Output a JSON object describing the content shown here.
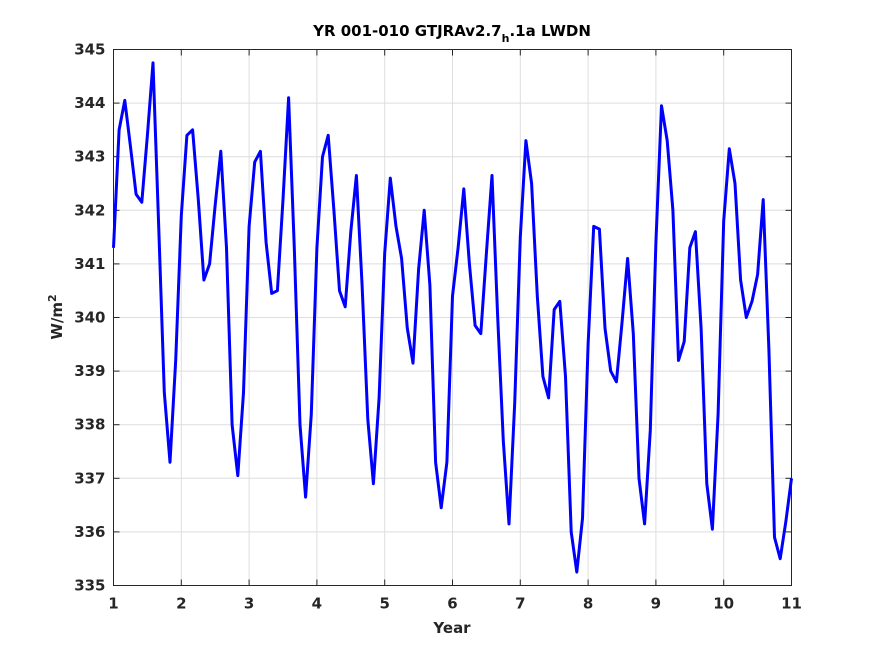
{
  "chart_data": {
    "type": "line",
    "title_main": "YR 001-010 GTJRAv2.7",
    "title_sub": "h",
    "title_tail": ".1a LWDN",
    "xlabel": "Year",
    "ylabel_main": "W/m",
    "ylabel_sup": "2",
    "xlim": [
      1,
      11
    ],
    "ylim": [
      335,
      345
    ],
    "xticks": [
      "1",
      "2",
      "3",
      "4",
      "5",
      "6",
      "7",
      "8",
      "9",
      "10",
      "11"
    ],
    "yticks": [
      "335",
      "336",
      "337",
      "338",
      "339",
      "340",
      "341",
      "342",
      "343",
      "344",
      "345"
    ],
    "grid": true,
    "series": [
      {
        "color": "#0000ff",
        "x": [
          1.0,
          1.083,
          1.167,
          1.25,
          1.333,
          1.417,
          1.5,
          1.583,
          1.667,
          1.75,
          1.833,
          1.917,
          2.0,
          2.083,
          2.167,
          2.25,
          2.333,
          2.417,
          2.5,
          2.583,
          2.667,
          2.75,
          2.833,
          2.917,
          3.0,
          3.083,
          3.167,
          3.25,
          3.333,
          3.417,
          3.5,
          3.583,
          3.667,
          3.75,
          3.833,
          3.917,
          4.0,
          4.083,
          4.167,
          4.25,
          4.333,
          4.417,
          4.5,
          4.583,
          4.667,
          4.75,
          4.833,
          4.917,
          5.0,
          5.083,
          5.167,
          5.25,
          5.333,
          5.417,
          5.5,
          5.583,
          5.667,
          5.75,
          5.833,
          5.917,
          6.0,
          6.083,
          6.167,
          6.25,
          6.333,
          6.417,
          6.5,
          6.583,
          6.667,
          6.75,
          6.833,
          6.917,
          7.0,
          7.083,
          7.167,
          7.25,
          7.333,
          7.417,
          7.5,
          7.583,
          7.667,
          7.75,
          7.833,
          7.917,
          8.0,
          8.083,
          8.167,
          8.25,
          8.333,
          8.417,
          8.5,
          8.583,
          8.667,
          8.75,
          8.833,
          8.917,
          9.0,
          9.083,
          9.167,
          9.25,
          9.333,
          9.417,
          9.5,
          9.583,
          9.667,
          9.75,
          9.833,
          9.917,
          10.0,
          10.083,
          10.167,
          10.25,
          10.333,
          10.417,
          10.5,
          10.583,
          10.667,
          10.75,
          10.833,
          10.917,
          11.0
        ],
        "y": [
          341.3,
          343.5,
          344.05,
          343.2,
          342.3,
          342.15,
          343.4,
          344.75,
          341.7,
          338.6,
          337.3,
          339.2,
          341.9,
          343.4,
          343.5,
          342.2,
          340.7,
          341.0,
          342.1,
          343.1,
          341.3,
          338.0,
          337.05,
          338.6,
          341.7,
          342.9,
          343.1,
          341.4,
          340.45,
          340.5,
          342.2,
          344.1,
          341.3,
          338.0,
          336.65,
          338.2,
          341.3,
          343.0,
          343.4,
          342.0,
          340.5,
          340.2,
          341.6,
          342.65,
          340.6,
          338.1,
          336.9,
          338.5,
          341.2,
          342.6,
          341.7,
          341.1,
          339.8,
          339.15,
          340.9,
          342.0,
          340.6,
          337.3,
          336.45,
          337.3,
          340.4,
          341.3,
          342.4,
          341.0,
          339.85,
          339.7,
          341.2,
          342.65,
          340.0,
          337.7,
          336.15,
          338.4,
          341.5,
          343.3,
          342.5,
          340.4,
          338.9,
          338.5,
          340.15,
          340.3,
          338.9,
          336.0,
          335.25,
          336.25,
          339.5,
          341.7,
          341.65,
          339.8,
          339.0,
          338.8,
          339.9,
          341.1,
          339.7,
          337.0,
          336.15,
          337.9,
          341.4,
          343.95,
          343.3,
          342.0,
          339.2,
          339.55,
          341.3,
          341.6,
          339.8,
          336.9,
          336.05,
          338.2,
          341.8,
          343.15,
          342.5,
          340.7,
          340.0,
          340.3,
          340.8,
          342.2,
          339.4,
          335.9,
          335.5,
          336.2,
          337.0
        ]
      }
    ]
  }
}
